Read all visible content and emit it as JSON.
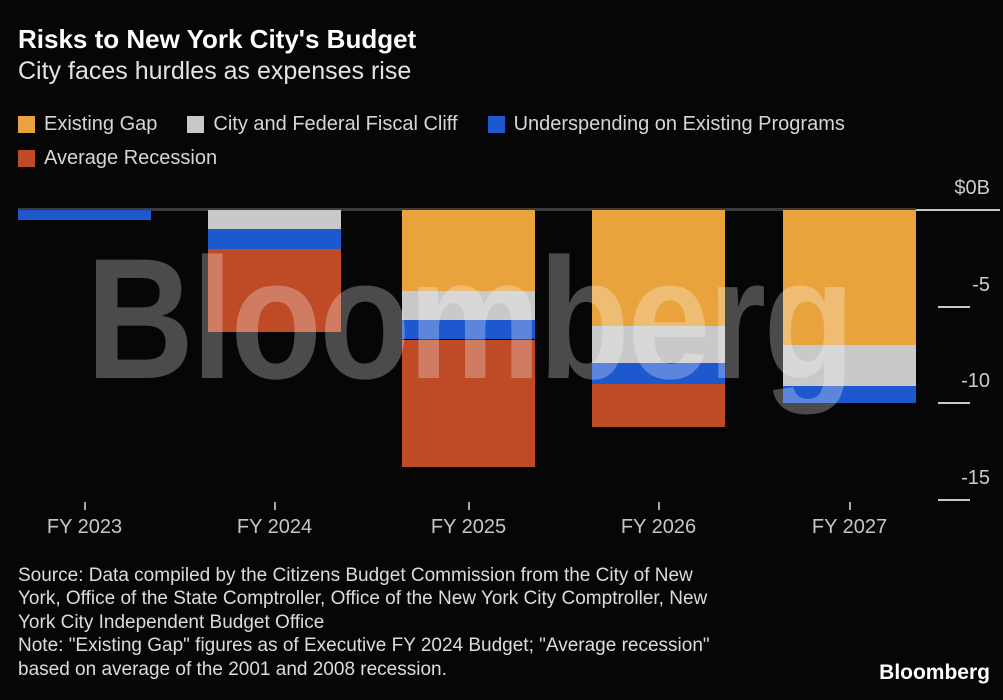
{
  "header": {
    "title": "Risks to New York City's Budget",
    "subtitle": "City faces hurdles as expenses rise"
  },
  "watermark": {
    "text": "Bloomberg"
  },
  "chart_data": {
    "type": "bar",
    "stacked": true,
    "orientation": "vertical",
    "units": "billions USD",
    "title": "Risks to New York City's Budget",
    "subtitle": "City faces hurdles as expenses rise",
    "categories": [
      "FY 2023",
      "FY 2024",
      "FY 2025",
      "FY 2026",
      "FY 2027"
    ],
    "series": [
      {
        "name": "Existing Gap",
        "color": "#E8A33D",
        "values": [
          0,
          0,
          -4.2,
          -6.0,
          -7.0
        ]
      },
      {
        "name": "City and Federal Fiscal Cliff",
        "color": "#C9C9C9",
        "values": [
          0,
          -1.0,
          -1.5,
          -1.9,
          -2.1
        ]
      },
      {
        "name": "Underspending on Existing Programs",
        "color": "#1D58CE",
        "values": [
          -0.5,
          -1.0,
          -1.0,
          -1.1,
          -0.9
        ]
      },
      {
        "name": "Average Recession",
        "color": "#BE4A26",
        "values": [
          0,
          -4.3,
          -6.6,
          -2.2,
          0
        ]
      }
    ],
    "totals": [
      -0.5,
      -6.3,
      -13.3,
      -11.2,
      -10.0
    ],
    "legend_rows": [
      [
        0,
        1,
        2
      ],
      [
        3
      ]
    ],
    "legend_position": "top",
    "y_axis": {
      "side": "right",
      "range": [
        -15.5,
        0
      ],
      "ticks": [
        {
          "label": "$0B",
          "value": 0
        },
        {
          "label": "-5",
          "value": -5
        },
        {
          "label": "-10",
          "value": -10
        },
        {
          "label": "-15",
          "value": -15
        }
      ]
    },
    "grid": "short right-side tick dashes, dark zero baseline across plot"
  },
  "footer": {
    "lines": [
      "Source: Data compiled by the Citizens Budget Commission from the City of New",
      "York, Office of the State Comptroller, Office of the New York City Comptroller, New",
      "York City Independent Budget Office",
      "Note: \"Existing Gap\" figures as of Executive FY 2024 Budget; \"Average recession\"",
      "based on average of the 2001 and 2008 recession."
    ],
    "logo": "Bloomberg"
  }
}
